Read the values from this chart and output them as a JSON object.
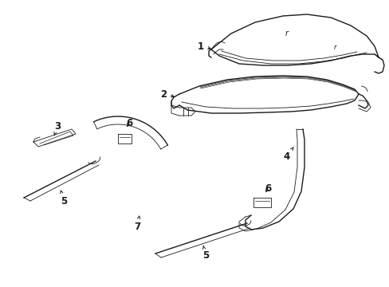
{
  "bg_color": "#ffffff",
  "line_color": "#1a1a1a",
  "fig_width": 4.89,
  "fig_height": 3.6,
  "dpi": 100,
  "lw_main": 1.0,
  "lw_thin": 0.6,
  "label_size": 8.5
}
